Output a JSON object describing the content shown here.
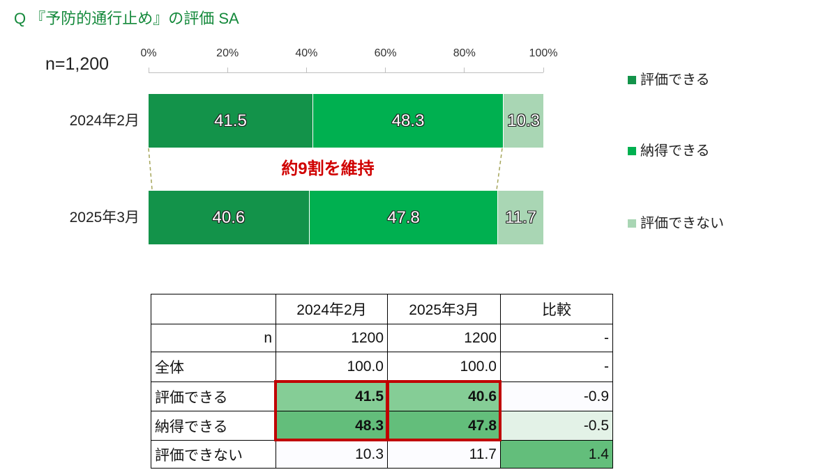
{
  "question_title": "Q 『予防的通行止め』の評価 SA",
  "n_label": "n=1,200",
  "chart_data": {
    "type": "bar",
    "orientation": "horizontal",
    "stacked": true,
    "categories": [
      "2024年2月",
      "2025年3月"
    ],
    "series": [
      {
        "name": "評価できる",
        "values": [
          41.5,
          40.6
        ],
        "color": "#13934a"
      },
      {
        "name": "納得できる",
        "values": [
          48.3,
          47.8
        ],
        "color": "#00b050"
      },
      {
        "name": "評価できない",
        "values": [
          10.3,
          11.7
        ],
        "color": "#a9d6b4"
      }
    ],
    "xlim": [
      0,
      100
    ],
    "x_ticks": [
      0,
      20,
      40,
      60,
      80,
      100
    ],
    "x_tick_labels": [
      "0%",
      "20%",
      "40%",
      "60%",
      "80%",
      "100%"
    ],
    "legend_position": "right",
    "grid": false,
    "annotation": "約9割を維持"
  },
  "table": {
    "headers": [
      "2024年2月",
      "2025年3月",
      "比較"
    ],
    "rows": [
      {
        "label": "n",
        "values": [
          "1200",
          "1200",
          "-"
        ]
      },
      {
        "label": "全体",
        "values": [
          "100.0",
          "100.0",
          "-"
        ]
      },
      {
        "label": "評価できる",
        "values": [
          "41.5",
          "40.6",
          "-0.9"
        ]
      },
      {
        "label": "納得できる",
        "values": [
          "48.3",
          "47.8",
          "-0.5"
        ]
      },
      {
        "label": "評価できない",
        "values": [
          "10.3",
          "11.7",
          "1.4"
        ]
      }
    ]
  }
}
